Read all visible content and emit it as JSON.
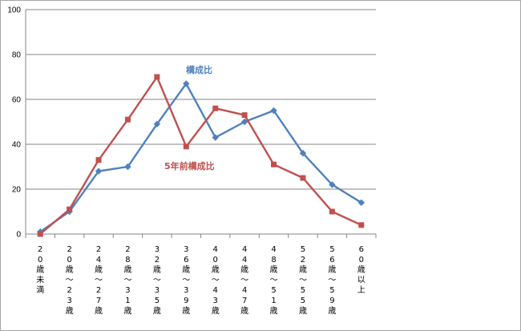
{
  "chart_data": {
    "type": "line",
    "categories": [
      "20歳未満",
      "20歳~23歳",
      "24歳~27歳",
      "28歳~31歳",
      "32歳~35歳",
      "36歳~39歳",
      "40歳~43歳",
      "44歳~47歳",
      "48歳~51歳",
      "52歳~55歳",
      "56歳~59歳",
      "60歳以上"
    ],
    "ylim": [
      0,
      100
    ],
    "yticks": [
      0,
      20,
      40,
      60,
      80,
      100
    ],
    "grid": true,
    "series": [
      {
        "name": "構成比",
        "color": "#4f81bd",
        "marker": "diamond",
        "values": [
          1,
          10,
          28,
          30,
          49,
          67,
          43,
          50,
          55,
          36,
          22,
          14
        ]
      },
      {
        "name": "5年前構成比",
        "color": "#c0504d",
        "marker": "square",
        "values": [
          0,
          11,
          33,
          51,
          70,
          39,
          56,
          53,
          31,
          25,
          10,
          4
        ]
      }
    ]
  }
}
